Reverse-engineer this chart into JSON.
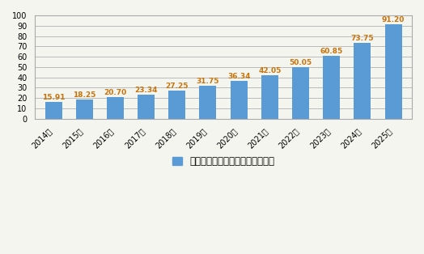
{
  "categories": [
    "2014年",
    "2015年",
    "2016年",
    "2017年",
    "2018年",
    "2019年",
    "2020年",
    "2021年",
    "2022年",
    "2023年",
    "2024年",
    "2025年"
  ],
  "values": [
    15.91,
    18.25,
    20.7,
    23.34,
    27.25,
    31.75,
    36.34,
    42.05,
    50.05,
    60.85,
    73.75,
    91.2
  ],
  "bar_color": "#5b9bd5",
  "label_color": "#c8730a",
  "background_color": "#f5f5f0",
  "plot_bg_color": "#f5f5f0",
  "grid_color": "#bbbbbb",
  "border_color": "#aaaaaa",
  "ylim": [
    0,
    100
  ],
  "yticks": [
    0,
    10,
    20,
    30,
    40,
    50,
    60,
    70,
    80,
    90,
    100
  ],
  "legend_text": "全球水下机器人市场规模：亿美元",
  "legend_color": "#5b9bd5",
  "value_fontsize": 6.5,
  "tick_fontsize": 7,
  "legend_fontsize": 8.5
}
